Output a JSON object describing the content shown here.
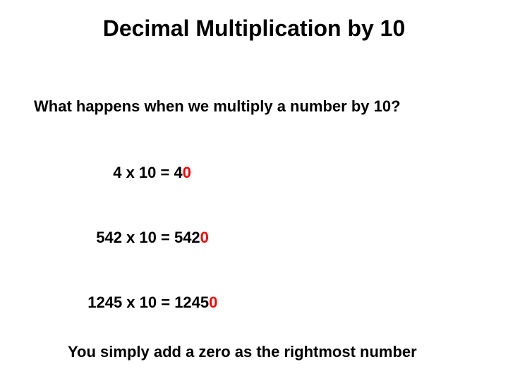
{
  "title": "Decimal Multiplication by 10",
  "question": "What happens when we multiply a number by 10?",
  "examples": [
    {
      "lhs": "4 x 10 = ",
      "result_prefix": "4",
      "result_zero": "0"
    },
    {
      "lhs": "542 x 10 = ",
      "result_prefix": "542",
      "result_zero": "0"
    },
    {
      "lhs": "1245 x 10 = ",
      "result_prefix": "1245",
      "result_zero": "0"
    }
  ],
  "footer": "You simply add a zero as the rightmost number",
  "colors": {
    "background": "#ffffff",
    "text": "#000000",
    "highlight": "#ff0000"
  },
  "typography": {
    "font_family": "Arial",
    "title_fontsize": 32,
    "body_fontsize": 22,
    "title_weight": "bold",
    "body_weight": "bold"
  }
}
